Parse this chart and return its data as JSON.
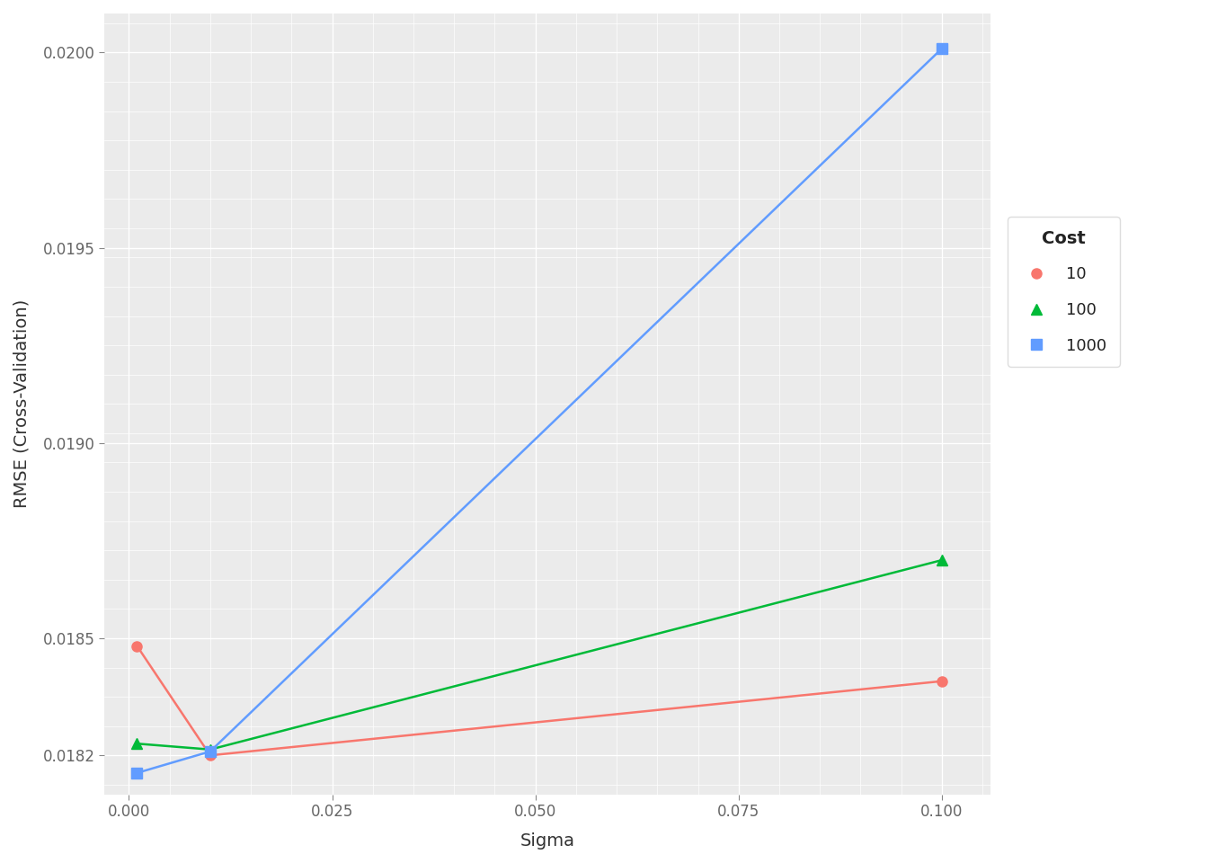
{
  "series": [
    {
      "label": "10",
      "color": "#F8766D",
      "marker": "o",
      "x": [
        0.001,
        0.01,
        0.1
      ],
      "y": [
        0.01848,
        0.0182,
        0.01839
      ]
    },
    {
      "label": "100",
      "color": "#00BA38",
      "marker": "^",
      "x": [
        0.001,
        0.01,
        0.1
      ],
      "y": [
        0.01823,
        0.018215,
        0.0187
      ]
    },
    {
      "label": "1000",
      "color": "#619CFF",
      "marker": "s",
      "x": [
        0.001,
        0.01,
        0.1
      ],
      "y": [
        0.018155,
        0.01821,
        0.02001
      ]
    }
  ],
  "xlabel": "Sigma",
  "ylabel": "RMSE (Cross-Validation)",
  "legend_title": "Cost",
  "xlim": [
    -0.003,
    0.106
  ],
  "ylim": [
    0.0181,
    0.0201
  ],
  "xticks": [
    0.0,
    0.025,
    0.05,
    0.075,
    0.1
  ],
  "xtick_labels": [
    "0.000",
    "0.025",
    "0.050",
    "0.075",
    "0.100"
  ],
  "yticks": [
    0.0182,
    0.0185,
    0.019,
    0.0195,
    0.02
  ],
  "ytick_labels": [
    "0.0182",
    "0.0185",
    "0.0190",
    "0.0195",
    "0.0200"
  ],
  "background_color": "#EBEBEB",
  "grid_color": "#FFFFFF",
  "axis_fontsize": 14,
  "tick_fontsize": 12,
  "legend_fontsize": 13,
  "legend_title_fontsize": 14,
  "marker_size": 8,
  "line_width": 1.8
}
